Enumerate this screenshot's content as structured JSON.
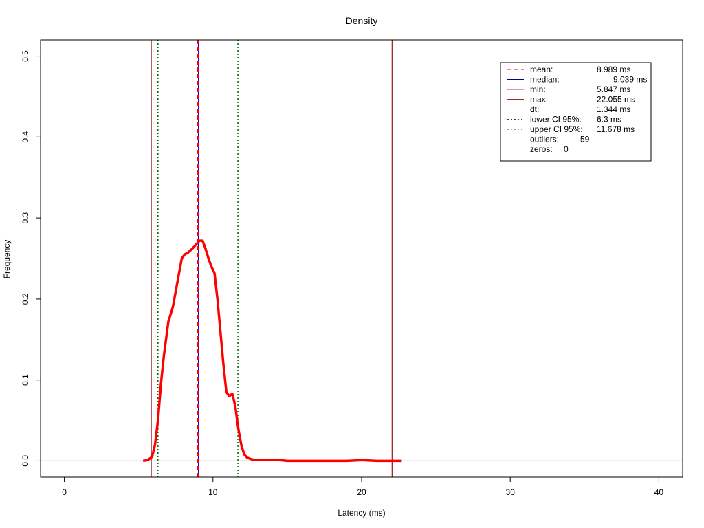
{
  "chart_data": {
    "type": "line",
    "title": "Density",
    "xlabel": "Latency (ms)",
    "ylabel": "Frequency",
    "xlim": [
      -1.6,
      41.6
    ],
    "ylim": [
      -0.02,
      0.52
    ],
    "xticks": [
      0,
      10,
      20,
      30,
      40
    ],
    "yticks": [
      0.0,
      0.1,
      0.2,
      0.3,
      0.4,
      0.5
    ],
    "xtick_labels": [
      "0",
      "10",
      "20",
      "30",
      "40"
    ],
    "ytick_labels": [
      "0.0",
      "0.1",
      "0.2",
      "0.3",
      "0.4",
      "0.5"
    ],
    "grid": false,
    "legend_position": "top-right",
    "series": [
      {
        "color": "#ff0000",
        "x": [
          5.3,
          5.6,
          5.9,
          6.1,
          6.3,
          6.5,
          6.7,
          7.0,
          7.3,
          7.6,
          7.9,
          8.1,
          8.3,
          8.6,
          8.9,
          9.1,
          9.3,
          9.5,
          9.7,
          9.9,
          10.1,
          10.3,
          10.5,
          10.7,
          10.9,
          11.1,
          11.3,
          11.5,
          11.7,
          11.9,
          12.1,
          12.3,
          12.6,
          13.0,
          13.5,
          14.0,
          14.5,
          15.0,
          16.0,
          17.0,
          18.0,
          19.0,
          20.0,
          21.0,
          22.0,
          22.7
        ],
        "y": [
          0.0,
          0.001,
          0.005,
          0.02,
          0.05,
          0.095,
          0.13,
          0.172,
          0.19,
          0.22,
          0.25,
          0.255,
          0.257,
          0.262,
          0.268,
          0.272,
          0.272,
          0.262,
          0.25,
          0.24,
          0.232,
          0.2,
          0.16,
          0.12,
          0.085,
          0.08,
          0.083,
          0.068,
          0.04,
          0.02,
          0.008,
          0.004,
          0.002,
          0.001,
          0.001,
          0.001,
          0.001,
          0.0,
          0.0,
          0.0,
          0.0,
          0.0,
          0.001,
          0.0,
          0.0,
          0.0
        ]
      }
    ],
    "reference_lines": [
      {
        "x": 8.989,
        "color": "#ff0000",
        "style": "dashed"
      },
      {
        "x": 9.039,
        "color": "#0000ff",
        "style": "solid"
      },
      {
        "x": 5.847,
        "color": "#a52a2a",
        "style": "solid"
      },
      {
        "x": 22.055,
        "color": "#a52a2a",
        "style": "solid"
      },
      {
        "x": 6.3,
        "color": "#006400",
        "style": "dotted"
      },
      {
        "x": 11.678,
        "color": "#006400",
        "style": "dotted"
      }
    ],
    "baseline": {
      "y": 0.0,
      "color": "#808080"
    },
    "legend": [
      {
        "label": "mean:",
        "value": "8.989 ms",
        "color": "#ff0000",
        "line": "dashed"
      },
      {
        "label": "median:",
        "value": "9.039 ms",
        "color": "#00008b",
        "line": "solid"
      },
      {
        "label": "min:",
        "value": "5.847 ms",
        "color": "#c71585",
        "line": "solid"
      },
      {
        "label": "max:",
        "value": "22.055 ms",
        "color": "#a52a2a",
        "line": "solid"
      },
      {
        "label": "dt:",
        "value": "1.344 ms",
        "color": "",
        "line": "none"
      },
      {
        "label": "lower CI 95%:",
        "value": "6.3 ms",
        "color": "#006400",
        "line": "dotted"
      },
      {
        "label": "upper CI 95%:",
        "value": "11.678 ms",
        "color": "#006400",
        "line": "dotted"
      },
      {
        "label": "outliers:",
        "value": "59",
        "color": "",
        "line": "none"
      },
      {
        "label": "zeros:",
        "value": "0",
        "color": "",
        "line": "none"
      }
    ]
  }
}
